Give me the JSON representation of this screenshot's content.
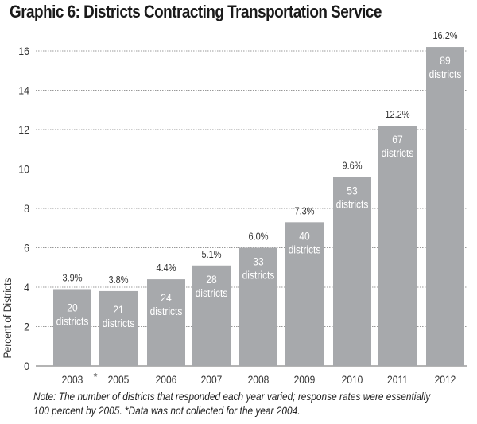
{
  "chart_data": {
    "type": "bar",
    "title": "Graphic 6: Districts Contracting Transportation Service",
    "xlabel": "",
    "ylabel": "Percent of Districts",
    "ylim": [
      0,
      16
    ],
    "yticks": [
      0,
      2,
      4,
      6,
      8,
      10,
      12,
      14,
      16
    ],
    "grid": true,
    "categories": [
      "2003",
      "2005",
      "2006",
      "2007",
      "2008",
      "2009",
      "2010",
      "2011",
      "2012"
    ],
    "gap_marker": {
      "after": "2003",
      "label": "*"
    },
    "values": [
      3.9,
      3.8,
      4.4,
      5.1,
      6.0,
      7.3,
      9.6,
      12.2,
      16.2
    ],
    "value_labels": [
      "3.9%",
      "3.8%",
      "4.4%",
      "5.1%",
      "6.0%",
      "7.3%",
      "9.6%",
      "12.2%",
      "16.2%"
    ],
    "district_counts": [
      "20",
      "21",
      "24",
      "28",
      "33",
      "40",
      "53",
      "67",
      "89"
    ],
    "district_unit": "districts",
    "bar_color": "#a7a9ac"
  },
  "note": {
    "line1": "Note: The number of districts that responded each year varied; response rates were essentially",
    "line2": "100 percent by 2005.  *Data was not collected for the year 2004."
  }
}
